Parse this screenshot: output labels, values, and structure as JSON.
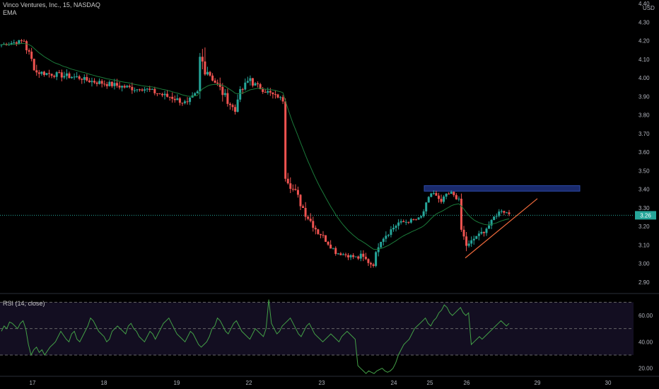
{
  "header": {
    "symbol_line": "Vinco Ventures, Inc., 15, NASDAQ",
    "indicator": "EMA",
    "currency": "USD"
  },
  "colors": {
    "background": "#000000",
    "up_candle": "#26a69a",
    "down_candle": "#ef5350",
    "ema_line": "#1b7a3a",
    "rsi_line": "#43a047",
    "rsi_band": "#2a1f4a",
    "resistance_zone": "#1a2a6c",
    "trendline": "#f06a3c",
    "price_tag": "#26a69a",
    "axis_text": "#b2b5be",
    "grid_dash": "#666666"
  },
  "chart_data": [
    {
      "type": "candlestick",
      "title": "",
      "x_tick_labels": [
        "17",
        "18",
        "19",
        "22",
        "23",
        "24",
        "25",
        "26",
        "29",
        "30"
      ],
      "y_tick_labels": [
        "4.40",
        "4.30",
        "4.20",
        "4.10",
        "4.00",
        "3.90",
        "3.80",
        "3.70",
        "3.60",
        "3.50",
        "3.40",
        "3.30",
        "3.20",
        "3.10",
        "3.00",
        "2.90"
      ],
      "ylim": [
        2.85,
        4.42
      ],
      "last_price_label": "3.26",
      "last_price": 3.26,
      "grid": false,
      "annotations": [
        {
          "kind": "zone",
          "y_low": 3.39,
          "y_high": 3.42,
          "label": ""
        },
        {
          "kind": "trendline",
          "from_y": 3.03,
          "to_y": 3.35,
          "label": ""
        }
      ],
      "series_ema": {
        "name": "EMA"
      },
      "segments": [
        {
          "y_start": 4.18,
          "y_end": 4.2,
          "n": 10,
          "amp": 0.02
        },
        {
          "y_start": 4.16,
          "y_end": 4.03,
          "n": 5,
          "amp": 0.05
        },
        {
          "y_start": 4.03,
          "y_end": 4.0,
          "n": 18,
          "amp": 0.03
        },
        {
          "y_start": 3.99,
          "y_end": 3.94,
          "n": 22,
          "amp": 0.03
        },
        {
          "y_start": 3.95,
          "y_end": 3.9,
          "n": 12,
          "amp": 0.03
        },
        {
          "y_start": 3.9,
          "y_end": 3.86,
          "n": 8,
          "amp": 0.03
        },
        {
          "y_start": 3.88,
          "y_end": 3.92,
          "n": 4,
          "amp": 0.03
        },
        {
          "y_start": 4.1,
          "y_end": 4.05,
          "n": 4,
          "amp": 0.1
        },
        {
          "y_start": 4.02,
          "y_end": 3.92,
          "n": 6,
          "amp": 0.05
        },
        {
          "y_start": 3.9,
          "y_end": 3.82,
          "n": 5,
          "amp": 0.04
        },
        {
          "y_start": 3.9,
          "y_end": 4.0,
          "n": 6,
          "amp": 0.04
        },
        {
          "y_start": 3.97,
          "y_end": 3.9,
          "n": 10,
          "amp": 0.03
        },
        {
          "y_start": 3.9,
          "y_end": 3.88,
          "n": 3,
          "amp": 0.02
        },
        {
          "y_start": 3.48,
          "y_end": 3.4,
          "n": 4,
          "amp": 0.05
        },
        {
          "y_start": 3.38,
          "y_end": 3.3,
          "n": 4,
          "amp": 0.05
        },
        {
          "y_start": 3.27,
          "y_end": 3.17,
          "n": 6,
          "amp": 0.04
        },
        {
          "y_start": 3.16,
          "y_end": 3.08,
          "n": 6,
          "amp": 0.03
        },
        {
          "y_start": 3.06,
          "y_end": 3.03,
          "n": 10,
          "amp": 0.02
        },
        {
          "y_start": 3.04,
          "y_end": 3.0,
          "n": 5,
          "amp": 0.03
        },
        {
          "y_start": 3.0,
          "y_end": 3.1,
          "n": 3,
          "amp": 0.03
        },
        {
          "y_start": 3.13,
          "y_end": 3.22,
          "n": 8,
          "amp": 0.03
        },
        {
          "y_start": 3.22,
          "y_end": 3.24,
          "n": 8,
          "amp": 0.02
        },
        {
          "y_start": 3.25,
          "y_end": 3.38,
          "n": 5,
          "amp": 0.03
        },
        {
          "y_start": 3.38,
          "y_end": 3.32,
          "n": 4,
          "amp": 0.03
        },
        {
          "y_start": 3.36,
          "y_end": 3.38,
          "n": 4,
          "amp": 0.02
        },
        {
          "y_start": 3.37,
          "y_end": 3.34,
          "n": 3,
          "amp": 0.02
        },
        {
          "y_start": 3.18,
          "y_end": 3.1,
          "n": 3,
          "amp": 0.04
        },
        {
          "y_start": 3.1,
          "y_end": 3.15,
          "n": 4,
          "amp": 0.03
        },
        {
          "y_start": 3.15,
          "y_end": 3.22,
          "n": 6,
          "amp": 0.03
        },
        {
          "y_start": 3.25,
          "y_end": 3.29,
          "n": 4,
          "amp": 0.02
        },
        {
          "y_start": 3.28,
          "y_end": 3.27,
          "n": 3,
          "amp": 0.02
        }
      ]
    },
    {
      "type": "line",
      "title": "RSI (14, close)",
      "y_tick_labels": [
        "60.00",
        "40.00",
        "20.00"
      ],
      "ylim": [
        15,
        75
      ],
      "bands": [
        70,
        50,
        30
      ],
      "series": [
        {
          "name": "RSI (14, close)",
          "values": [
            48,
            52,
            50,
            55,
            54,
            52,
            50,
            54,
            56,
            50,
            38,
            30,
            34,
            36,
            32,
            34,
            30,
            33,
            36,
            38,
            40,
            44,
            48,
            45,
            42,
            40,
            46,
            48,
            42,
            40,
            44,
            48,
            52,
            58,
            56,
            52,
            48,
            46,
            44,
            40,
            42,
            48,
            50,
            52,
            50,
            48,
            46,
            52,
            54,
            50,
            48,
            44,
            42,
            40,
            44,
            48,
            46,
            42,
            46,
            50,
            54,
            56,
            58,
            54,
            50,
            46,
            44,
            42,
            40,
            44,
            48,
            46,
            42,
            38,
            36,
            38,
            40,
            44,
            50,
            52,
            58,
            56,
            52,
            48,
            46,
            50,
            54,
            56,
            52,
            48,
            46,
            44,
            42,
            46,
            50,
            48,
            46,
            44,
            50,
            72,
            54,
            50,
            46,
            48,
            52,
            54,
            56,
            58,
            54,
            50,
            46,
            44,
            48,
            52,
            54,
            50,
            46,
            44,
            42,
            40,
            42,
            44,
            46,
            44,
            42,
            40,
            44,
            46,
            48,
            46,
            44,
            42,
            22,
            20,
            18,
            16,
            18,
            17,
            16,
            18,
            19,
            20,
            18,
            17,
            18,
            20,
            24,
            30,
            34,
            38,
            40,
            42,
            46,
            50,
            52,
            54,
            56,
            58,
            54,
            52,
            56,
            58,
            62,
            64,
            68,
            66,
            62,
            60,
            62,
            64,
            66,
            62,
            60,
            62,
            38,
            40,
            42,
            44,
            42,
            44,
            46,
            48,
            50,
            52,
            54,
            56,
            54,
            52,
            54
          ]
        }
      ]
    }
  ]
}
